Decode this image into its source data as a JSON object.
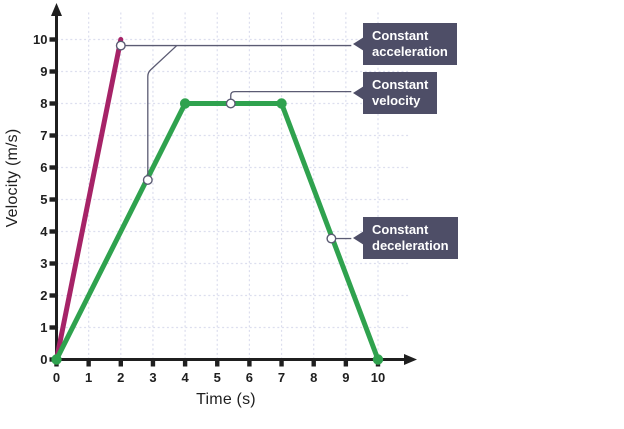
{
  "axes": {
    "x_title": "Time (s)",
    "y_title": "Velocity (m/s)"
  },
  "labels": {
    "acceleration": {
      "line1": "Constant",
      "line2": "acceleration"
    },
    "velocity": {
      "line1": "Constant",
      "line2": "velocity"
    },
    "deceleration": {
      "line1": "Constant",
      "line2": "deceleration"
    }
  },
  "colors": {
    "accent_magenta": "#a62367",
    "accent_green": "#2fa24e",
    "label_box": "#4e4e67",
    "callout_line": "#5b5b73",
    "grid_line": "#dcdeee",
    "axis": "#1f1f1f",
    "marker_fill": "#ffffff"
  },
  "chart_data": {
    "type": "line",
    "title": "",
    "xlabel": "Time (s)",
    "ylabel": "Velocity (m/s)",
    "xlim": [
      0,
      10
    ],
    "ylim": [
      0,
      10
    ],
    "xticks": [
      0,
      1,
      2,
      3,
      4,
      5,
      6,
      7,
      8,
      9,
      10
    ],
    "yticks": [
      0,
      1,
      2,
      3,
      4,
      5,
      6,
      7,
      8,
      9,
      10
    ],
    "grid": "dashed",
    "legend": "none",
    "series": [
      {
        "name": "constant-acceleration-line",
        "color": "#a62367",
        "points": [
          [
            0,
            0
          ],
          [
            2,
            10
          ]
        ],
        "dot_points": []
      },
      {
        "name": "accelerate-cruise-decelerate-line",
        "color": "#2fa24e",
        "points": [
          [
            0,
            0
          ],
          [
            4,
            8
          ],
          [
            7,
            8
          ],
          [
            10,
            0
          ]
        ],
        "dot_points": [
          [
            0,
            0
          ],
          [
            4,
            8
          ],
          [
            7,
            8
          ],
          [
            10,
            0
          ]
        ]
      }
    ],
    "annotations": [
      {
        "label": "Constant acceleration",
        "anchor_points": [
          [
            2,
            9.81
          ],
          [
            2.84,
            5.61
          ]
        ],
        "routes": [
          [
            [
              2.14,
              9.81
            ],
            [
              9.17,
              9.81
            ]
          ],
          [
            [
              3.74,
              9.81
            ],
            [
              2.84,
              8.97
            ],
            [
              2.84,
              5.76
            ]
          ]
        ]
      },
      {
        "label": "Constant velocity",
        "anchor_points": [
          [
            5.42,
            8
          ]
        ],
        "routes": [
          [
            [
              5.42,
              8.14
            ],
            [
              5.42,
              8.37
            ],
            [
              9.17,
              8.37
            ]
          ]
        ]
      },
      {
        "label": "Constant deceleration",
        "anchor_points": [
          [
            8.55,
            3.78
          ]
        ],
        "routes": [
          [
            [
              8.69,
              3.78
            ],
            [
              9.17,
              3.78
            ]
          ]
        ]
      }
    ]
  }
}
